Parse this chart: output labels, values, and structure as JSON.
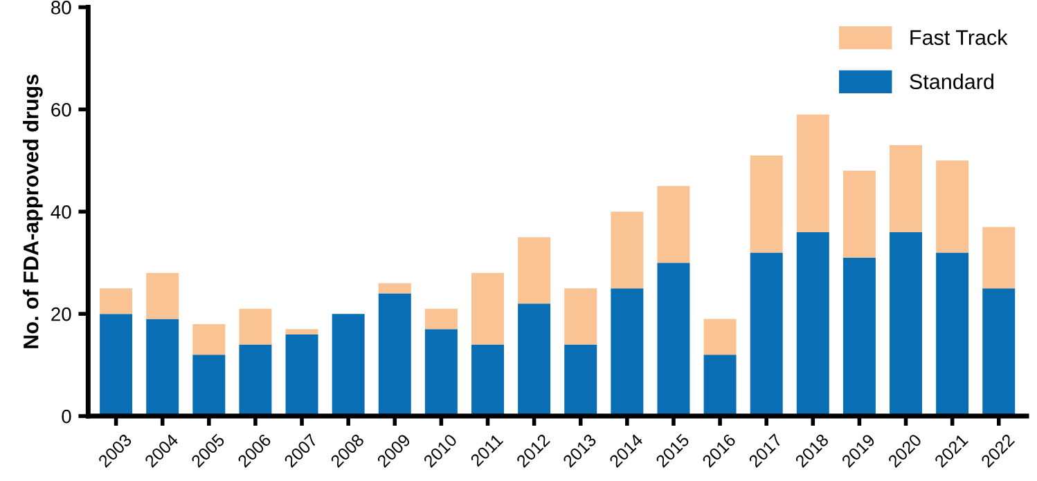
{
  "chart_data": {
    "type": "bar",
    "stacked": true,
    "ylabel": "No. of FDA-approved drugs",
    "categories": [
      "2003",
      "2004",
      "2005",
      "2006",
      "2007",
      "2008",
      "2009",
      "2010",
      "2011",
      "2012",
      "2013",
      "2014",
      "2015",
      "2016",
      "2017",
      "2018",
      "2019",
      "2020",
      "2021",
      "2022"
    ],
    "series": [
      {
        "name": "Standard",
        "color": "#0a6eb4",
        "values": [
          20,
          19,
          12,
          14,
          16,
          20,
          24,
          17,
          14,
          22,
          14,
          25,
          30,
          12,
          32,
          36,
          31,
          36,
          32,
          25
        ]
      },
      {
        "name": "Fast Track",
        "color": "#f9c393",
        "values": [
          5,
          9,
          6,
          7,
          1,
          0,
          2,
          4,
          14,
          13,
          11,
          15,
          15,
          7,
          19,
          23,
          17,
          17,
          18,
          12
        ]
      }
    ],
    "ylim": [
      0,
      80
    ],
    "yticks": [
      0,
      20,
      40,
      60,
      80
    ],
    "grid": false,
    "legend": "top right"
  }
}
